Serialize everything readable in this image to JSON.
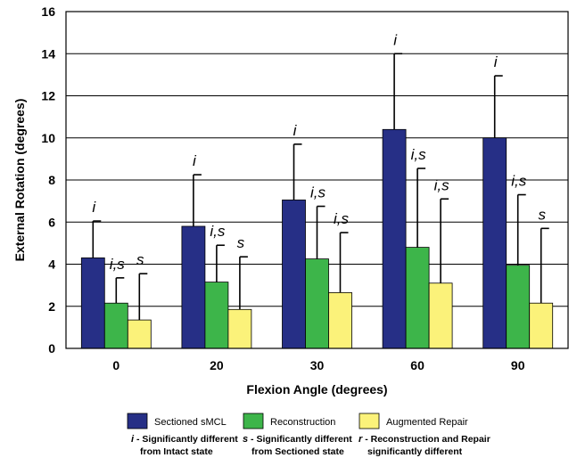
{
  "chart_data": {
    "type": "bar",
    "xlabel": "Flexion Angle (degrees)",
    "ylabel": "External Rotation (degrees)",
    "ylim": [
      0,
      16
    ],
    "yticks": [
      0,
      2,
      4,
      6,
      8,
      10,
      12,
      14,
      16
    ],
    "grid": true,
    "categories": [
      "0",
      "20",
      "30",
      "60",
      "90"
    ],
    "series": [
      {
        "name": "Sectioned sMCL",
        "color": "#262f86",
        "values": [
          4.3,
          5.8,
          7.05,
          10.4,
          10.0
        ],
        "error": [
          1.75,
          2.45,
          2.65,
          3.6,
          2.95
        ],
        "labels": [
          "i",
          "i",
          "i",
          "i",
          "i"
        ]
      },
      {
        "name": "Reconstruction",
        "color": "#3db54a",
        "values": [
          2.15,
          3.15,
          4.25,
          4.8,
          3.95
        ],
        "error": [
          1.2,
          1.75,
          2.5,
          3.75,
          3.35
        ],
        "labels": [
          "i,s",
          "i,s",
          "i,s",
          "i,s",
          "i,s"
        ]
      },
      {
        "name": "Augmented Repair",
        "color": "#fbf27a",
        "values": [
          1.35,
          1.85,
          2.65,
          3.1,
          2.15
        ],
        "error": [
          2.2,
          2.5,
          2.85,
          4.0,
          3.55
        ],
        "labels": [
          "s",
          "s",
          "i,s",
          "i,s",
          "s"
        ]
      }
    ]
  },
  "notes": [
    {
      "key": "i",
      "text": [
        " - Significantly different",
        "from Intact state"
      ]
    },
    {
      "key": "s",
      "text": [
        " - Significantly different",
        "from Sectioned state"
      ]
    },
    {
      "key": "r",
      "text": [
        " - Reconstruction and Repair",
        "significantly different"
      ]
    }
  ]
}
